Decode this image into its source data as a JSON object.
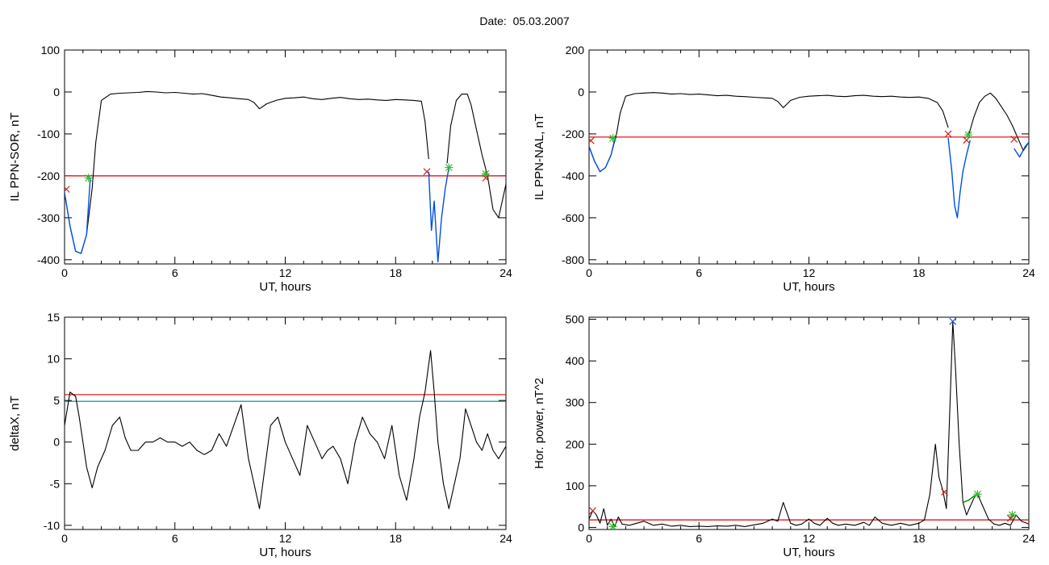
{
  "title": "Date:  05.03.2007",
  "chart_data": [
    {
      "type": "line",
      "title": "",
      "xlabel": "UT, hours",
      "ylabel": "IL PPN-SOR, nT",
      "xlim": [
        0,
        24
      ],
      "ylim": [
        -410,
        100
      ],
      "xticks": [
        0,
        6,
        12,
        18,
        24
      ],
      "yticks": [
        100,
        0,
        -100,
        -200,
        -300,
        -400
      ],
      "grid": false,
      "hlines": [
        {
          "y": -200,
          "color": "#dd0000"
        }
      ],
      "series": [
        {
          "color": "#000000",
          "x": [
            0,
            0.3,
            0.6,
            0.9,
            1.2,
            1.5,
            1.7,
            2.0,
            2.5,
            3.0,
            3.5,
            4.0,
            4.5,
            5.0,
            5.5,
            6.0,
            6.5,
            7.0,
            7.5,
            8.0,
            8.5,
            9.0,
            9.5,
            10.0,
            10.3,
            10.6,
            11.0,
            11.5,
            12.0,
            12.5,
            13.0,
            13.5,
            14.0,
            14.5,
            15.0,
            15.5,
            16.0,
            16.5,
            17.0,
            17.5,
            18.0,
            18.5,
            19.0,
            19.4,
            19.6,
            19.8
          ],
          "y": [
            -240,
            -320,
            -380,
            -385,
            -340,
            -230,
            -120,
            -20,
            -5,
            -3,
            -2,
            -1,
            1,
            0,
            -2,
            -1,
            -3,
            -5,
            -4,
            -8,
            -12,
            -14,
            -16,
            -18,
            -25,
            -40,
            -28,
            -20,
            -15,
            -14,
            -12,
            -16,
            -18,
            -15,
            -13,
            -16,
            -18,
            -17,
            -19,
            -20,
            -18,
            -19,
            -20,
            -22,
            -70,
            -160
          ]
        },
        {
          "color": "#000000",
          "x": [
            20.8,
            21.0,
            21.3,
            21.6,
            21.9,
            22.1,
            22.4,
            22.7,
            23.0,
            23.3,
            23.6,
            24.0
          ],
          "y": [
            -170,
            -80,
            -20,
            -5,
            -5,
            -30,
            -90,
            -150,
            -200,
            -280,
            -300,
            -220
          ]
        }
      ],
      "highlight_series": [
        {
          "color": "#0050dd",
          "x": [
            0,
            0.3,
            0.6,
            0.9,
            1.2,
            1.4
          ],
          "y": [
            -240,
            -320,
            -380,
            -385,
            -340,
            -205
          ]
        },
        {
          "color": "#0050dd",
          "x": [
            19.8,
            19.95,
            20.1,
            20.3,
            20.5,
            20.7,
            20.9
          ],
          "y": [
            -190,
            -330,
            -260,
            -405,
            -300,
            -230,
            -180
          ]
        }
      ],
      "markers": [
        {
          "x": 0.1,
          "y": -232,
          "color": "#cc2222",
          "symbol": "x"
        },
        {
          "x": 1.3,
          "y": -205,
          "color": "#33bb33",
          "symbol": "*"
        },
        {
          "x": 19.7,
          "y": -190,
          "color": "#cc2222",
          "symbol": "x"
        },
        {
          "x": 20.9,
          "y": -180,
          "color": "#33bb33",
          "symbol": "*"
        },
        {
          "x": 22.9,
          "y": -205,
          "color": "#cc2222",
          "symbol": "x"
        },
        {
          "x": 22.9,
          "y": -195,
          "color": "#33bb33",
          "symbol": "*"
        }
      ]
    },
    {
      "type": "line",
      "title": "",
      "xlabel": "UT, hours",
      "ylabel": "IL PPN-NAL, nT",
      "xlim": [
        0,
        24
      ],
      "ylim": [
        -820,
        200
      ],
      "xticks": [
        0,
        6,
        12,
        18,
        24
      ],
      "yticks": [
        200,
        0,
        -200,
        -400,
        -600,
        -800
      ],
      "grid": false,
      "hlines": [
        {
          "y": -215,
          "color": "#dd0000"
        }
      ],
      "series": [
        {
          "color": "#000000",
          "x": [
            0,
            0.3,
            0.6,
            0.9,
            1.2,
            1.5,
            1.7,
            2.0,
            2.5,
            3.0,
            3.5,
            4.0,
            4.5,
            5.0,
            5.5,
            6.0,
            6.5,
            7.0,
            7.5,
            8.0,
            8.5,
            9.0,
            9.5,
            10.0,
            10.3,
            10.6,
            11.0,
            11.5,
            12.0,
            12.5,
            13.0,
            13.5,
            14.0,
            14.5,
            15.0,
            15.5,
            16.0,
            16.5,
            17.0,
            17.5,
            18.0,
            18.5,
            19.0,
            19.3,
            19.6
          ],
          "y": [
            -260,
            -330,
            -380,
            -360,
            -300,
            -200,
            -100,
            -20,
            -8,
            -5,
            -3,
            -5,
            -10,
            -8,
            -12,
            -10,
            -14,
            -18,
            -16,
            -20,
            -22,
            -25,
            -28,
            -30,
            -45,
            -75,
            -40,
            -25,
            -20,
            -18,
            -16,
            -20,
            -22,
            -18,
            -16,
            -20,
            -22,
            -20,
            -24,
            -26,
            -24,
            -30,
            -50,
            -90,
            -170
          ]
        },
        {
          "color": "#000000",
          "x": [
            20.7,
            21.0,
            21.3,
            21.6,
            21.9,
            22.2,
            22.5,
            22.8,
            23.1,
            23.4,
            23.7,
            24.0
          ],
          "y": [
            -210,
            -120,
            -50,
            -20,
            -5,
            -30,
            -70,
            -110,
            -160,
            -220,
            -280,
            -240
          ]
        }
      ],
      "highlight_series": [
        {
          "color": "#0050dd",
          "x": [
            0,
            0.3,
            0.6,
            0.9,
            1.2,
            1.4
          ],
          "y": [
            -260,
            -330,
            -380,
            -360,
            -300,
            -225
          ]
        },
        {
          "color": "#0050dd",
          "x": [
            19.6,
            19.8,
            19.95,
            20.1,
            20.25,
            20.4,
            20.6,
            20.8
          ],
          "y": [
            -220,
            -380,
            -540,
            -600,
            -480,
            -380,
            -300,
            -230
          ]
        },
        {
          "color": "#0050dd",
          "x": [
            23.2,
            23.5,
            23.8,
            24.0
          ],
          "y": [
            -270,
            -310,
            -260,
            -240
          ]
        }
      ],
      "markers": [
        {
          "x": 0.1,
          "y": -232,
          "color": "#cc2222",
          "symbol": "x"
        },
        {
          "x": 1.3,
          "y": -220,
          "color": "#33bb33",
          "symbol": "*"
        },
        {
          "x": 19.6,
          "y": -200,
          "color": "#cc2222",
          "symbol": "x"
        },
        {
          "x": 20.6,
          "y": -230,
          "color": "#cc2222",
          "symbol": "x"
        },
        {
          "x": 20.7,
          "y": -205,
          "color": "#33bb33",
          "symbol": "*"
        },
        {
          "x": 23.2,
          "y": -225,
          "color": "#cc2222",
          "symbol": "x"
        }
      ]
    },
    {
      "type": "line",
      "title": "",
      "xlabel": "UT, hours",
      "ylabel": "deltaX, nT",
      "xlim": [
        0,
        24
      ],
      "ylim": [
        -10.5,
        15
      ],
      "xticks": [
        0,
        6,
        12,
        18,
        24
      ],
      "yticks": [
        15,
        10,
        5,
        0,
        -5,
        -10
      ],
      "grid": false,
      "hlines": [
        {
          "y": 5.7,
          "color": "#dd0000"
        },
        {
          "y": 4.9,
          "color": "#008080"
        }
      ],
      "series": [
        {
          "color": "#000000",
          "x": [
            0,
            0.3,
            0.6,
            0.8,
            1.0,
            1.2,
            1.5,
            1.8,
            2.2,
            2.6,
            3.0,
            3.3,
            3.6,
            4.0,
            4.4,
            4.8,
            5.2,
            5.6,
            6.0,
            6.4,
            6.8,
            7.2,
            7.6,
            8.0,
            8.4,
            8.8,
            9.2,
            9.6,
            10.0,
            10.3,
            10.6,
            10.9,
            11.2,
            11.6,
            12.0,
            12.4,
            12.8,
            13.2,
            13.6,
            14.0,
            14.3,
            14.6,
            15.0,
            15.4,
            15.8,
            16.2,
            16.6,
            17.0,
            17.4,
            17.8,
            18.2,
            18.6,
            19.0,
            19.3,
            19.6,
            19.9,
            20.1,
            20.3,
            20.6,
            20.9,
            21.2,
            21.5,
            21.8,
            22.1,
            22.4,
            22.7,
            23.0,
            23.3,
            23.6,
            24.0
          ],
          "y": [
            2,
            6,
            5.5,
            3,
            0,
            -3,
            -5.5,
            -3,
            -1,
            2,
            3,
            0.5,
            -1,
            -1,
            0,
            0,
            0.5,
            0,
            0,
            -0.5,
            0,
            -1,
            -1.5,
            -1,
            1,
            -0.5,
            2,
            4.5,
            -2,
            -5,
            -8,
            -3,
            2,
            3,
            0,
            -2,
            -4,
            2,
            0,
            -2,
            -1,
            -0.5,
            -2,
            -5,
            0,
            3,
            1,
            0,
            -2,
            2,
            -4,
            -7,
            -2,
            3,
            6,
            11,
            6,
            0,
            -5,
            -8,
            -5,
            -2,
            4,
            2,
            0,
            -1,
            1,
            -1,
            -2,
            -0.5
          ]
        }
      ],
      "highlight_series": [],
      "markers": []
    },
    {
      "type": "line",
      "title": "",
      "xlabel": "UT, hours",
      "ylabel": "Hor. power, nT^2",
      "xlim": [
        0,
        24
      ],
      "ylim": [
        -5,
        505
      ],
      "xticks": [
        0,
        6,
        12,
        18,
        24
      ],
      "yticks": [
        500,
        400,
        300,
        200,
        100,
        0
      ],
      "grid": false,
      "hlines": [
        {
          "y": 18,
          "color": "#dd0000"
        }
      ],
      "series": [
        {
          "color": "#000000",
          "x": [
            0,
            0.2,
            0.4,
            0.6,
            0.8,
            1.0,
            1.2,
            1.4,
            1.6,
            1.8,
            2.2,
            2.6,
            3.0,
            3.5,
            4.0,
            4.5,
            5.0,
            5.5,
            6.0,
            6.5,
            7.0,
            7.5,
            8.0,
            8.5,
            9.0,
            9.5,
            10.0,
            10.3,
            10.6,
            10.8,
            11.0,
            11.3,
            11.6,
            12.0,
            12.3,
            12.6,
            13.0,
            13.3,
            13.6,
            14.0,
            14.5,
            15.0,
            15.3,
            15.6,
            16.0,
            16.5,
            17.0,
            17.5,
            18.0,
            18.3,
            18.6,
            18.9,
            19.1,
            19.3,
            19.5,
            19.7,
            19.85,
            20.0,
            20.2,
            20.4,
            20.6,
            20.8,
            21.0,
            21.2,
            21.5,
            21.8,
            22.1,
            22.4,
            22.7,
            23.0,
            23.3,
            23.6,
            24.0
          ],
          "y": [
            20,
            40,
            30,
            10,
            45,
            5,
            20,
            2,
            25,
            8,
            5,
            10,
            15,
            5,
            8,
            3,
            5,
            2,
            3,
            2,
            4,
            3,
            5,
            2,
            6,
            10,
            20,
            15,
            60,
            35,
            10,
            5,
            8,
            20,
            10,
            5,
            22,
            10,
            5,
            8,
            5,
            12,
            5,
            25,
            10,
            5,
            10,
            5,
            10,
            18,
            80,
            200,
            120,
            90,
            45,
            300,
            495,
            380,
            200,
            60,
            30,
            50,
            70,
            80,
            50,
            20,
            8,
            5,
            10,
            5,
            30,
            15,
            8
          ]
        }
      ],
      "highlight_series": [
        {
          "color": "#008000",
          "x": [
            20.4,
            20.7,
            21.0,
            21.3
          ],
          "y": [
            60,
            65,
            75,
            80
          ]
        }
      ],
      "markers": [
        {
          "x": 0.2,
          "y": 40,
          "color": "#cc2222",
          "symbol": "x"
        },
        {
          "x": 19.4,
          "y": 85,
          "color": "#cc2222",
          "symbol": "x"
        },
        {
          "x": 19.85,
          "y": 495,
          "color": "#2255dd",
          "symbol": "x"
        },
        {
          "x": 21.2,
          "y": 80,
          "color": "#33bb33",
          "symbol": "*"
        },
        {
          "x": 23.1,
          "y": 30,
          "color": "#33bb33",
          "symbol": "*"
        },
        {
          "x": 23.0,
          "y": 22,
          "color": "#cc2222",
          "symbol": "x"
        },
        {
          "x": 1.3,
          "y": 2,
          "color": "#33bb33",
          "symbol": "*"
        }
      ]
    }
  ]
}
